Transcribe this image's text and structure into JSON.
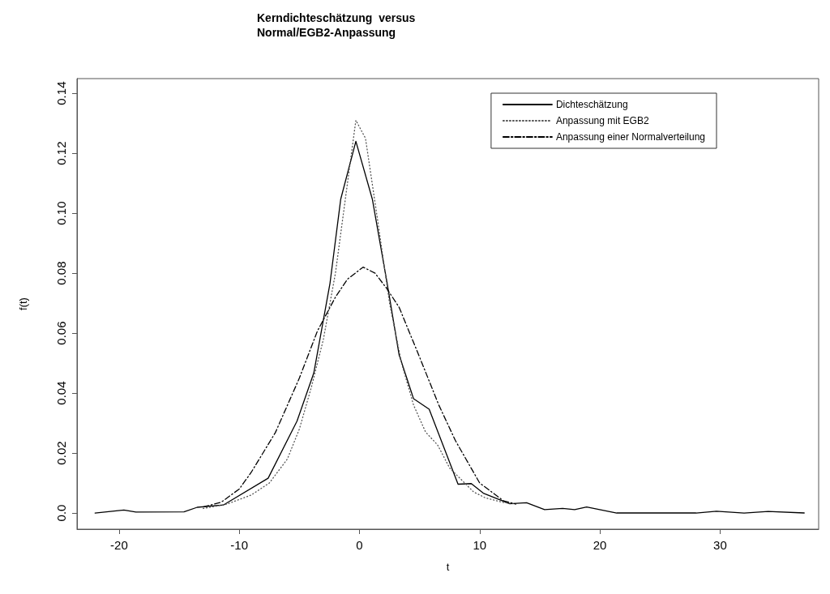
{
  "chart_data": {
    "type": "line",
    "title": "Kerndichteschätzung  versus\nNormal/EGB2-Anpassung",
    "xlabel": "t",
    "ylabel": "f(t)",
    "xlim": [
      -23.5,
      38.2
    ],
    "xticks": [
      -20,
      -10,
      0,
      10,
      20,
      30
    ],
    "ylim": [
      -0.0054,
      0.1449
    ],
    "yticks": [
      {
        "value": 0,
        "label": "0.0"
      },
      0.02,
      0.04,
      0.06,
      0.08,
      {
        "value": 0.1,
        "label": "0.10"
      },
      0.12,
      0.14
    ],
    "grid": false,
    "legend": "top right",
    "marker": "none",
    "series": [
      {
        "name": "Dichteschätzung",
        "color": "#000000",
        "line_style": "solid",
        "x": [
          -22,
          -19.6,
          -18.6,
          -14.6,
          -13.5,
          -11.3,
          -7.6,
          -5.2,
          -3.8,
          -2.45,
          -1.56,
          -0.3,
          1.07,
          2.3,
          3.3,
          4.5,
          5.8,
          8.2,
          9.3,
          10.3,
          12.5,
          13.9,
          15.4,
          16.9,
          17.9,
          18.9,
          21.4,
          28,
          29.7,
          32,
          34,
          37
        ],
        "values": [
          0,
          0.001,
          0.0003,
          0.0004,
          0.0019,
          0.0027,
          0.0116,
          0.0306,
          0.0467,
          0.0767,
          0.1047,
          0.124,
          0.1047,
          0.0767,
          0.0527,
          0.0381,
          0.0346,
          0.0096,
          0.0098,
          0.0066,
          0.0031,
          0.0034,
          0.0011,
          0.0015,
          0.0011,
          0.002,
          0,
          0,
          0.0006,
          0,
          0.0005,
          0
        ]
      },
      {
        "name": "Anpassung mit EGB2",
        "color": "#555555",
        "line_style": "dotted",
        "x": [
          -13,
          -11,
          -9,
          -7.5,
          -6,
          -5,
          -4,
          -3,
          -2,
          -1,
          -0.3,
          0.5,
          1.5,
          2.5,
          3.5,
          4.5,
          5.5,
          6.5,
          7.5,
          8.5,
          9.5,
          10.5,
          12,
          13
        ],
        "values": [
          0.0015,
          0.003,
          0.006,
          0.01,
          0.018,
          0.028,
          0.042,
          0.058,
          0.08,
          0.11,
          0.131,
          0.125,
          0.098,
          0.07,
          0.05,
          0.036,
          0.027,
          0.0227,
          0.015,
          0.011,
          0.007,
          0.005,
          0.0035,
          0.003
        ]
      },
      {
        "name": "Anpassung einer Normalverteilung",
        "color": "#000000",
        "line_style": "dashed",
        "x": [
          -13,
          -11.5,
          -10,
          -9,
          -7,
          -5,
          -3.5,
          -2,
          -1,
          0.3,
          1.3,
          2.3,
          3.3,
          5,
          6.6,
          8,
          10,
          12,
          13
        ],
        "values": [
          0.002,
          0.0036,
          0.008,
          0.0136,
          0.0268,
          0.045,
          0.0607,
          0.072,
          0.078,
          0.082,
          0.08,
          0.0747,
          0.0686,
          0.052,
          0.036,
          0.024,
          0.01,
          0.004,
          0.003
        ]
      }
    ]
  }
}
